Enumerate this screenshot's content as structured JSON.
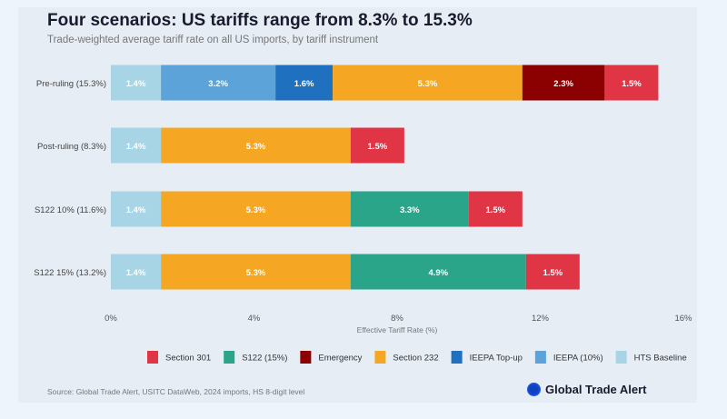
{
  "chart_data": {
    "type": "bar",
    "orientation": "horizontal",
    "stacked": true,
    "title": "Four scenarios: US tariffs range from 8.3% to 15.3%",
    "subtitle": "Trade-weighted average tariff rate on all US imports, by tariff instrument",
    "xlabel": "Effective Tariff Rate (%)",
    "xlim": [
      0,
      16
    ],
    "xticks": [
      "0%",
      "4%",
      "8%",
      "12%",
      "16%"
    ],
    "xtick_values": [
      0,
      4,
      8,
      12,
      16
    ],
    "grid": false,
    "legend_placement": "bottom",
    "categories": [
      "Pre-ruling (15.3%)",
      "Post-ruling (8.3%)",
      "S122 10% (11.6%)",
      "S122 15% (13.2%)"
    ],
    "stack_order": [
      "HTS Baseline",
      "IEEPA (10%)",
      "IEEPA Top-up",
      "Section 232",
      "S122 (15%)",
      "Emergency",
      "Section 301"
    ],
    "series": [
      {
        "name": "HTS Baseline",
        "color": "#a8d5e6",
        "values": [
          1.4,
          1.4,
          1.4,
          1.4
        ]
      },
      {
        "name": "IEEPA (10%)",
        "color": "#5ba3d9",
        "values": [
          3.2,
          0,
          0,
          0
        ]
      },
      {
        "name": "IEEPA Top-up",
        "color": "#2070c0",
        "values": [
          1.6,
          0,
          0,
          0
        ]
      },
      {
        "name": "Section 232",
        "color": "#f5a623",
        "values": [
          5.3,
          5.3,
          5.3,
          5.3
        ]
      },
      {
        "name": "S122 (15%)",
        "color": "#2aa58a",
        "values": [
          0,
          0,
          3.3,
          4.9
        ]
      },
      {
        "name": "Emergency",
        "color": "#8b0000",
        "values": [
          2.3,
          0,
          0,
          0
        ]
      },
      {
        "name": "Section 301",
        "color": "#e03545",
        "values": [
          1.5,
          1.5,
          1.5,
          1.5
        ]
      }
    ],
    "legend_order": [
      "Section 301",
      "S122 (15%)",
      "Emergency",
      "Section 232",
      "IEEPA Top-up",
      "IEEPA (10%)",
      "HTS Baseline"
    ]
  },
  "footer": {
    "source": "Source: Global Trade Alert, USITC DataWeb, 2024 imports, HS 8-digit level",
    "brand": "Global Trade Alert"
  }
}
